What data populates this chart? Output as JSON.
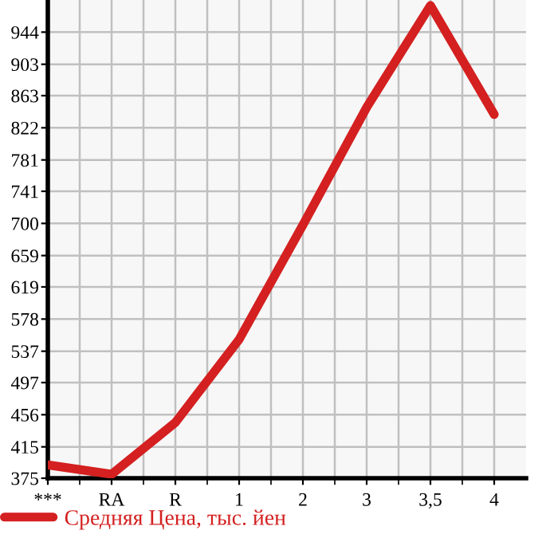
{
  "chart_data": {
    "type": "line",
    "categories": [
      "***",
      "RA",
      "R",
      "1",
      "2",
      "3",
      "3,5",
      "4"
    ],
    "series": [
      {
        "name": "Средняя Цена, тыс. йен",
        "color": "#d42020",
        "values": [
          392,
          380,
          446,
          552,
          698,
          848,
          978,
          839
        ]
      }
    ],
    "ylim": [
      375,
      985
    ],
    "yticks": [
      375,
      415,
      456,
      497,
      537,
      578,
      619,
      659,
      700,
      741,
      781,
      822,
      863,
      903,
      944
    ],
    "grid": true,
    "legend": "bottom left",
    "marker": "none",
    "line_style": "solid"
  }
}
